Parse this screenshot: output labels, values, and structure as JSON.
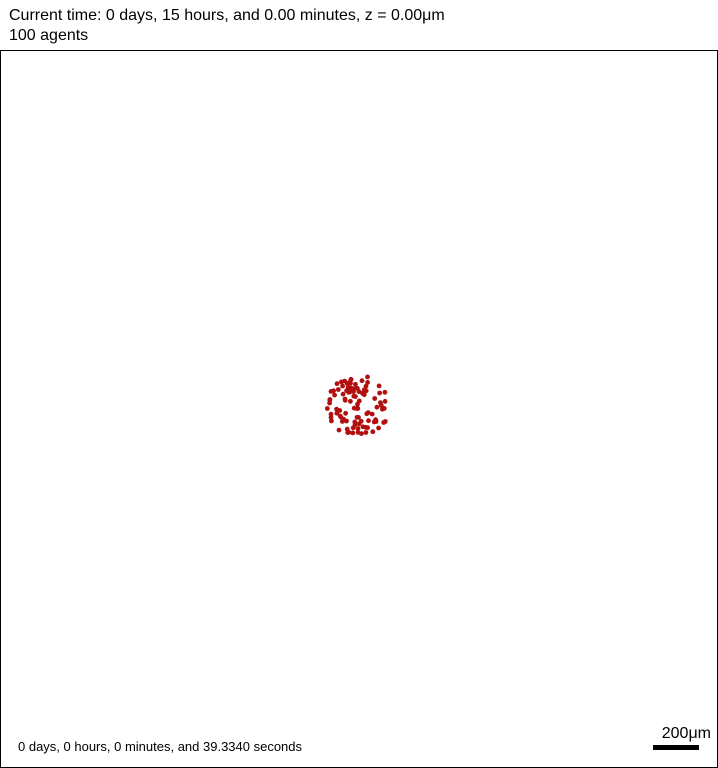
{
  "header": {
    "time_text": "Current time: 0 days, 15 hours, and 0.00 minutes, z = 0.00μm",
    "agent_count_text": "100 agents"
  },
  "footer": {
    "elapsed_text": "0 days, 0 hours, 0 minutes, and 39.3340 seconds",
    "scale_label": "200μm"
  },
  "colors": {
    "agent": "#b20f0f",
    "frame_border": "#000000",
    "background": "#ffffff"
  },
  "agents": {
    "count": 100,
    "cluster_center_um": [
      -1.5,
      -12
    ],
    "cluster_radius_um": 35,
    "agent_radius_um": 2.6
  }
}
